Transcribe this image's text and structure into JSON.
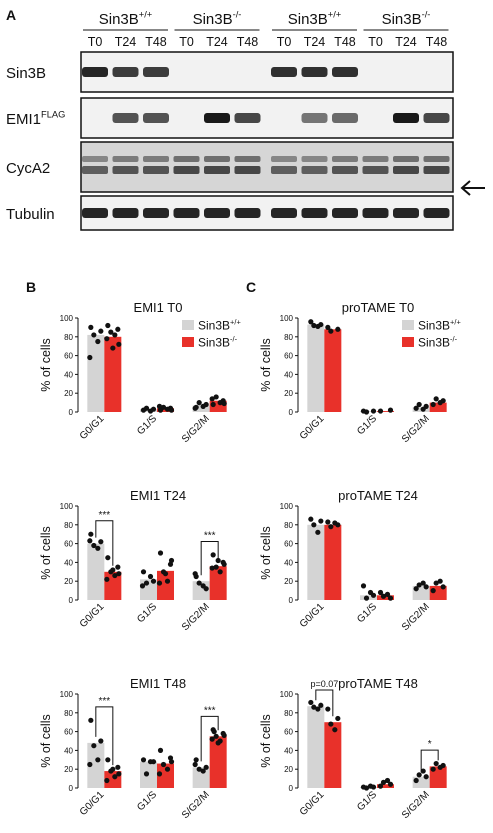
{
  "panel_labels": {
    "a": "A",
    "b": "B",
    "c": "C"
  },
  "blot": {
    "groups": [
      {
        "label": "Sin3B",
        "sup": "+/+"
      },
      {
        "label": "Sin3B",
        "sup": "-/-"
      },
      {
        "label": "Sin3B",
        "sup": "+/+"
      },
      {
        "label": "Sin3B",
        "sup": "-/-"
      }
    ],
    "timepoints": [
      "T0",
      "T24",
      "T48",
      "T0",
      "T24",
      "T48",
      "T0",
      "T24",
      "T48",
      "T0",
      "T24",
      "T48"
    ],
    "rows": [
      {
        "label": "Sin3B",
        "sup": ""
      },
      {
        "label": "EMI1",
        "sup": "FLAG"
      },
      {
        "label": "CycA2",
        "sup": ""
      },
      {
        "label": "Tubulin",
        "sup": ""
      }
    ]
  },
  "legend": {
    "wt": {
      "label": "Sin3B",
      "sup": "+/+",
      "color": "#d4d4d4"
    },
    "ko": {
      "label": "Sin3B",
      "sup": "-/-",
      "color": "#e8312a"
    }
  },
  "chart_data": [
    {
      "type": "bar",
      "title": "EMI1 T0",
      "ylabel": "% of cells",
      "ylim": [
        0,
        100
      ],
      "yticks": [
        0,
        20,
        40,
        60,
        80,
        100
      ],
      "categories": [
        "G0/G1",
        "G1/S",
        "S/G2/M"
      ],
      "series": [
        {
          "name": "Sin3B+/+",
          "values": [
            82,
            3,
            7
          ]
        },
        {
          "name": "Sin3B-/-",
          "values": [
            80,
            4,
            12
          ]
        }
      ],
      "points": [
        [
          [
            90,
            86,
            82,
            75,
            58
          ],
          [
            2,
            3,
            4,
            1
          ],
          [
            5,
            8,
            10,
            6,
            4
          ]
        ],
        [
          [
            92,
            88,
            85,
            82,
            78,
            72,
            68
          ],
          [
            2,
            4,
            5,
            3,
            6,
            2
          ],
          [
            8,
            12,
            16,
            10,
            14,
            9
          ]
        ]
      ],
      "sig": []
    },
    {
      "type": "bar",
      "title": "EMI1 T24",
      "ylabel": "% of cells",
      "ylim": [
        0,
        100
      ],
      "yticks": [
        0,
        20,
        40,
        60,
        80,
        100
      ],
      "categories": [
        "G0/G1",
        "G1/S",
        "S/G2/M"
      ],
      "series": [
        {
          "name": "Sin3B+/+",
          "values": [
            60,
            22,
            20
          ]
        },
        {
          "name": "Sin3B-/-",
          "values": [
            30,
            31,
            36
          ]
        }
      ],
      "points": [
        [
          [
            70,
            62,
            58,
            55,
            63
          ],
          [
            30,
            20,
            18,
            25,
            15
          ],
          [
            25,
            12,
            18,
            15,
            28
          ]
        ],
        [
          [
            45,
            35,
            30,
            26,
            22,
            28,
            32
          ],
          [
            50,
            38,
            30,
            20,
            18,
            42,
            28
          ],
          [
            48,
            40,
            35,
            30,
            34,
            38,
            42
          ]
        ]
      ],
      "sig": [
        {
          "cat": 0,
          "label": "***"
        },
        {
          "cat": 2,
          "label": "***"
        }
      ]
    },
    {
      "type": "bar",
      "title": "EMI1 T48",
      "ylabel": "% of cells",
      "ylim": [
        0,
        100
      ],
      "yticks": [
        0,
        20,
        40,
        60,
        80,
        100
      ],
      "categories": [
        "G0/G1",
        "G1/S",
        "S/G2/M"
      ],
      "series": [
        {
          "name": "Sin3B+/+",
          "values": [
            48,
            28,
            22
          ]
        },
        {
          "name": "Sin3B-/-",
          "values": [
            18,
            26,
            55
          ]
        }
      ],
      "points": [
        [
          [
            72,
            50,
            45,
            30,
            25
          ],
          [
            30,
            28,
            15,
            28
          ],
          [
            30,
            22,
            20,
            18,
            25
          ]
        ],
        [
          [
            30,
            22,
            18,
            12,
            8,
            15,
            20
          ],
          [
            40,
            32,
            25,
            20,
            15,
            28
          ],
          [
            62,
            58,
            55,
            50,
            52,
            56,
            48,
            60
          ]
        ]
      ],
      "sig": [
        {
          "cat": 0,
          "label": "***"
        },
        {
          "cat": 2,
          "label": "***"
        }
      ]
    },
    {
      "type": "bar",
      "title": "proTAME T0",
      "ylabel": "% of cells",
      "ylim": [
        0,
        100
      ],
      "yticks": [
        0,
        20,
        40,
        60,
        80,
        100
      ],
      "categories": [
        "G0/G1",
        "G1/S",
        "S/G2/M"
      ],
      "series": [
        {
          "name": "Sin3B+/+",
          "values": [
            93,
            1,
            5
          ]
        },
        {
          "name": "Sin3B-/-",
          "values": [
            88,
            1,
            10
          ]
        }
      ],
      "points": [
        [
          [
            96,
            93,
            92,
            91
          ],
          [
            1,
            1,
            0
          ],
          [
            4,
            6,
            8,
            3
          ]
        ],
        [
          [
            90,
            88,
            86
          ],
          [
            1,
            2
          ],
          [
            8,
            12,
            14,
            10
          ]
        ]
      ],
      "sig": []
    },
    {
      "type": "bar",
      "title": "proTAME T24",
      "ylabel": "% of cells",
      "ylim": [
        0,
        100
      ],
      "yticks": [
        0,
        20,
        40,
        60,
        80,
        100
      ],
      "categories": [
        "G0/G1",
        "G1/S",
        "S/G2/M"
      ],
      "series": [
        {
          "name": "Sin3B+/+",
          "values": [
            80,
            5,
            15
          ]
        },
        {
          "name": "Sin3B-/-",
          "values": [
            80,
            5,
            15
          ]
        }
      ],
      "points": [
        [
          [
            86,
            84,
            80,
            72
          ],
          [
            15,
            5,
            2,
            8
          ],
          [
            12,
            14,
            16,
            18
          ]
        ],
        [
          [
            83,
            80,
            78,
            82
          ],
          [
            8,
            2,
            4,
            6
          ],
          [
            10,
            14,
            18,
            20
          ]
        ]
      ],
      "sig": []
    },
    {
      "type": "bar",
      "title": "proTAME T48",
      "ylabel": "% of cells",
      "ylim": [
        0,
        100
      ],
      "yticks": [
        0,
        20,
        40,
        60,
        80,
        100
      ],
      "categories": [
        "G0/G1",
        "G1/S",
        "S/G2/M"
      ],
      "series": [
        {
          "name": "Sin3B+/+",
          "values": [
            87,
            1,
            12
          ]
        },
        {
          "name": "Sin3B-/-",
          "values": [
            70,
            4,
            23
          ]
        }
      ],
      "points": [
        [
          [
            91,
            88,
            86,
            84
          ],
          [
            1,
            1,
            0,
            2
          ],
          [
            8,
            12,
            14,
            18
          ]
        ],
        [
          [
            84,
            74,
            68,
            62
          ],
          [
            2,
            4,
            6,
            8
          ],
          [
            20,
            24,
            26,
            22
          ]
        ]
      ],
      "sig": [
        {
          "cat": 0,
          "label": "p=0.07"
        },
        {
          "cat": 2,
          "label": "*"
        }
      ]
    }
  ]
}
